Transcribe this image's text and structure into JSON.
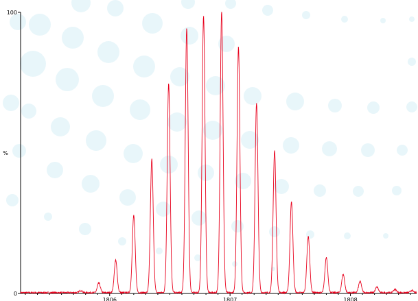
{
  "colors": {
    "trace": "#e8001c",
    "bubbles": "#d6eef5",
    "axis": "#000000"
  },
  "chart_data": {
    "type": "line",
    "title": "",
    "xlabel": "",
    "ylabel": "%",
    "xlim": [
      1805.26,
      1808.55
    ],
    "ylim": [
      0,
      100
    ],
    "y_ticks": [
      {
        "value": 0,
        "label": "0"
      },
      {
        "value": 100,
        "label": "100"
      }
    ],
    "x_ticks": [
      {
        "value": 1806,
        "label": "1806"
      },
      {
        "value": 1807,
        "label": "1807"
      },
      {
        "value": 1808,
        "label": "1808"
      }
    ],
    "grid": false,
    "baseline": 0.3,
    "peak_width": 0.012,
    "series": [
      {
        "values": [
          {
            "x": 1805.76,
            "y": 0.8
          },
          {
            "x": 1805.91,
            "y": 3.5
          },
          {
            "x": 1806.05,
            "y": 11.5
          },
          {
            "x": 1806.2,
            "y": 27.5
          },
          {
            "x": 1806.35,
            "y": 47.5
          },
          {
            "x": 1806.49,
            "y": 74.5
          },
          {
            "x": 1806.64,
            "y": 94.0
          },
          {
            "x": 1806.78,
            "y": 98.5
          },
          {
            "x": 1806.93,
            "y": 100.0
          },
          {
            "x": 1807.07,
            "y": 87.5
          },
          {
            "x": 1807.22,
            "y": 67.5
          },
          {
            "x": 1807.37,
            "y": 50.5
          },
          {
            "x": 1807.51,
            "y": 32.5
          },
          {
            "x": 1807.65,
            "y": 20.0
          },
          {
            "x": 1807.8,
            "y": 12.5
          },
          {
            "x": 1807.94,
            "y": 6.5
          },
          {
            "x": 1808.08,
            "y": 4.0
          },
          {
            "x": 1808.22,
            "y": 2.0
          },
          {
            "x": 1808.37,
            "y": 1.2
          },
          {
            "x": 1808.51,
            "y": 0.8
          }
        ]
      }
    ]
  }
}
